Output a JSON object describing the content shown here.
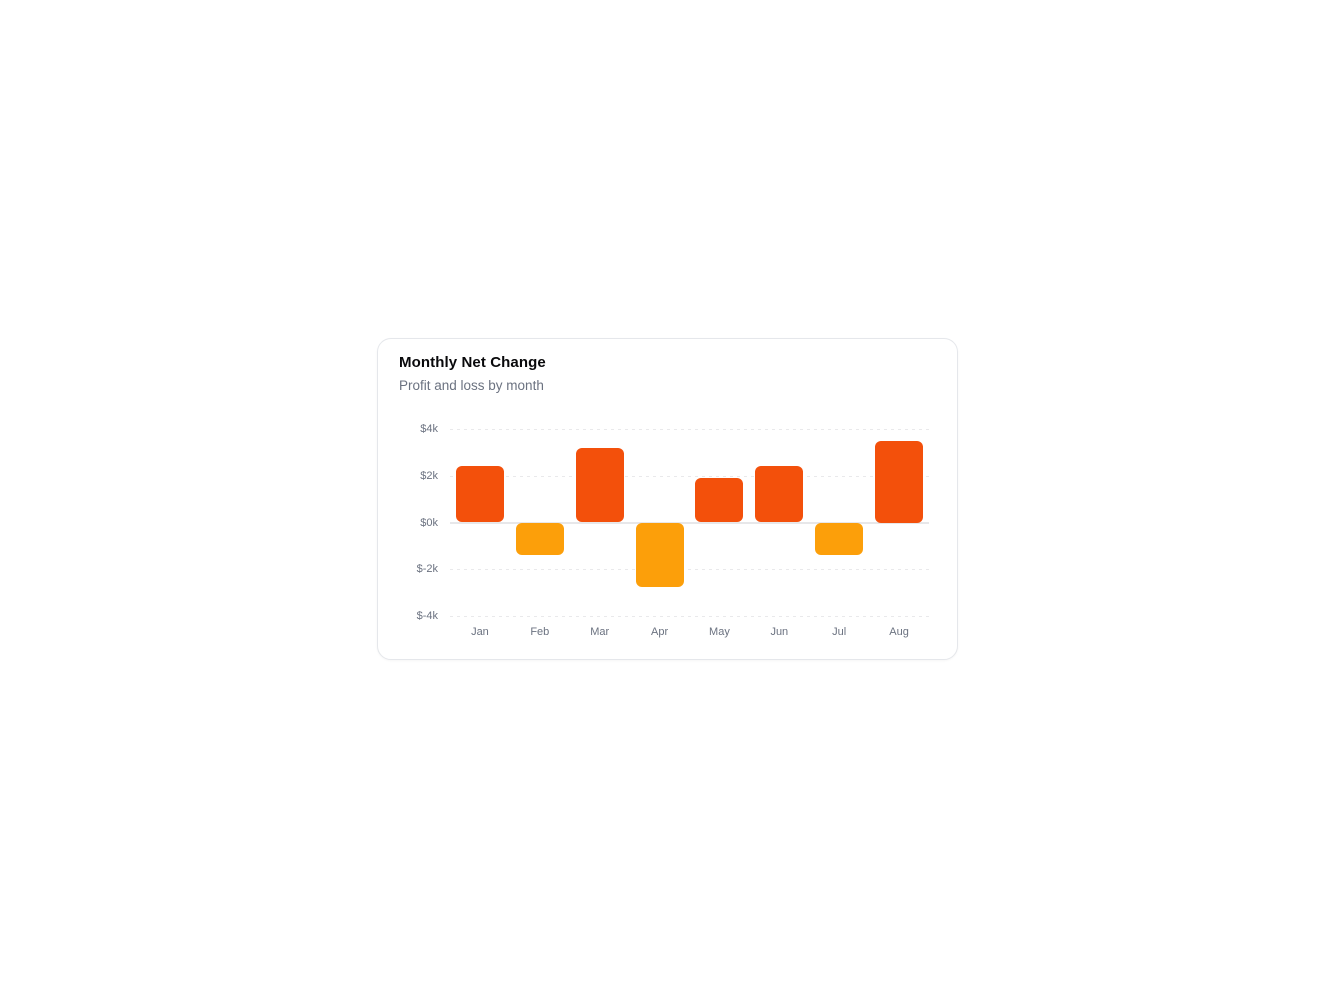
{
  "card": {
    "title": "Monthly Net Change",
    "subtitle": "Profit and loss by month"
  },
  "chart_data": {
    "type": "bar",
    "title": "Monthly Net Change",
    "subtitle": "Profit and loss by month",
    "categories": [
      "Jan",
      "Feb",
      "Mar",
      "Apr",
      "May",
      "Jun",
      "Jul",
      "Aug"
    ],
    "values": [
      2400,
      -1400,
      3200,
      -2750,
      1900,
      2400,
      -1400,
      3500
    ],
    "xlabel": "",
    "ylabel": "",
    "ylim": [
      -4000,
      4000
    ],
    "y_ticks": [
      {
        "label": "$4k",
        "value": 4000
      },
      {
        "label": "$2k",
        "value": 2000
      },
      {
        "label": "$0k",
        "value": 0
      },
      {
        "label": "$-2k",
        "value": -2000
      },
      {
        "label": "$-4k",
        "value": -4000
      }
    ],
    "grid": "horizontal-dashed, solid zero baseline",
    "legend": "none",
    "colors": {
      "positive_bar": "#F3500B",
      "negative_bar": "#FC9F0A",
      "gridline": "#e9e9eb",
      "zero_line": "#e7e7e9",
      "tick_text": "#6b7280"
    }
  }
}
